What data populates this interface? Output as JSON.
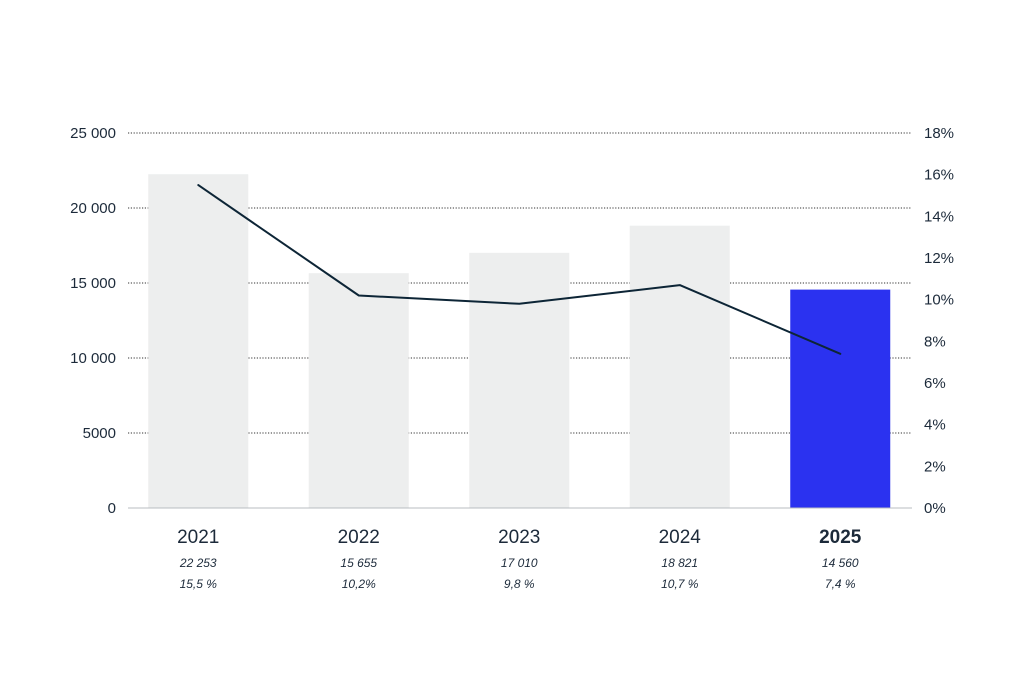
{
  "chart_data": {
    "type": "bar",
    "categories": [
      "2021",
      "2022",
      "2023",
      "2024",
      "2025"
    ],
    "highlight_category": "2025",
    "series": [
      {
        "type": "bar",
        "axis": "left",
        "values": [
          22253,
          15655,
          17010,
          18821,
          14560
        ]
      },
      {
        "type": "line",
        "axis": "right",
        "values": [
          15.5,
          10.2,
          9.8,
          10.7,
          7.4
        ]
      }
    ],
    "value_labels": [
      "22 253",
      "15 655",
      "17 010",
      "18 821",
      "14 560"
    ],
    "percent_labels": [
      "15,5 %",
      "10,2%",
      "9,8 %",
      "10,7 %",
      "7,4 %"
    ],
    "y_left": {
      "ylim": [
        0,
        25000
      ],
      "ticks": [
        0,
        5000,
        10000,
        15000,
        20000,
        25000
      ],
      "tick_labels": [
        "0",
        "5000",
        "10 000",
        "15 000",
        "20 000",
        "25 000"
      ]
    },
    "y_right": {
      "ylim": [
        0,
        18
      ],
      "ticks": [
        0,
        2,
        4,
        6,
        8,
        10,
        12,
        14,
        16,
        18
      ],
      "tick_labels": [
        "0%",
        "2%",
        "4%",
        "6%",
        "8%",
        "10%",
        "12%",
        "14%",
        "16%",
        "18%"
      ]
    },
    "grid": "dotted horizontal",
    "colors": {
      "bar": "#edeeee",
      "bar_highlight": "#2b32f0",
      "line": "#0d2536",
      "text": "#1c2a3a",
      "grid": "#333333"
    }
  }
}
